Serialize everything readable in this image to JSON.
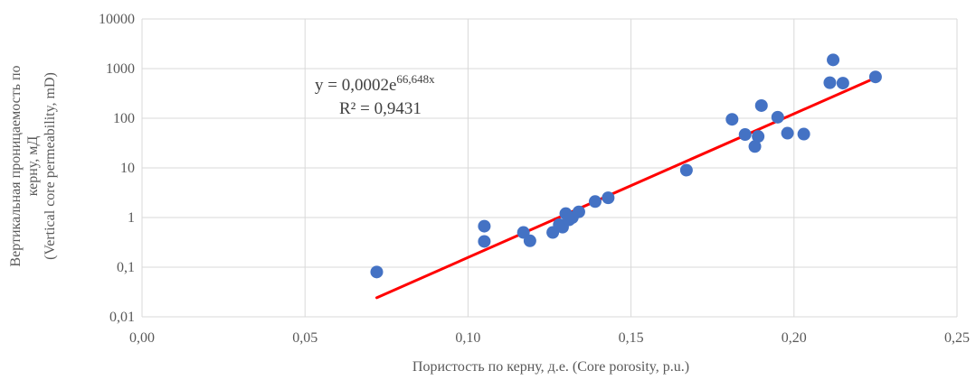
{
  "chart_data": {
    "type": "scatter",
    "xlabel": "Пористость по керну, д.е. (Core porosity, p.u.)",
    "ylabel_lines": [
      "Вертикальная проницаемость по",
      "керну, мД",
      "(Vertical core permeability, mD)"
    ],
    "xlim": [
      0,
      0.25
    ],
    "ylim": [
      0.01,
      10000
    ],
    "yscale": "log",
    "grid": true,
    "x_ticks": [
      0,
      0.05,
      0.1,
      0.15,
      0.2,
      0.25
    ],
    "x_tick_labels": [
      "0,00",
      "0,05",
      "0,10",
      "0,15",
      "0,20",
      "0,25"
    ],
    "y_ticks": [
      0.01,
      0.1,
      1,
      10,
      100,
      1000,
      10000
    ],
    "y_tick_labels": [
      "0,01",
      "0,1",
      "1",
      "10",
      "100",
      "1000",
      "10000"
    ],
    "marker_color": "#4472c4",
    "trendline_color": "#ff0000",
    "points": [
      {
        "x": 0.072,
        "y": 0.08
      },
      {
        "x": 0.105,
        "y": 0.33
      },
      {
        "x": 0.105,
        "y": 0.67
      },
      {
        "x": 0.117,
        "y": 0.5
      },
      {
        "x": 0.119,
        "y": 0.34
      },
      {
        "x": 0.126,
        "y": 0.5
      },
      {
        "x": 0.128,
        "y": 0.72
      },
      {
        "x": 0.129,
        "y": 0.64
      },
      {
        "x": 0.13,
        "y": 1.2
      },
      {
        "x": 0.131,
        "y": 0.9
      },
      {
        "x": 0.132,
        "y": 1.0
      },
      {
        "x": 0.134,
        "y": 1.3
      },
      {
        "x": 0.139,
        "y": 2.1
      },
      {
        "x": 0.143,
        "y": 2.5
      },
      {
        "x": 0.167,
        "y": 9.0
      },
      {
        "x": 0.181,
        "y": 95
      },
      {
        "x": 0.185,
        "y": 47
      },
      {
        "x": 0.188,
        "y": 27
      },
      {
        "x": 0.189,
        "y": 43
      },
      {
        "x": 0.19,
        "y": 180
      },
      {
        "x": 0.195,
        "y": 105
      },
      {
        "x": 0.198,
        "y": 50
      },
      {
        "x": 0.203,
        "y": 48
      },
      {
        "x": 0.211,
        "y": 520
      },
      {
        "x": 0.212,
        "y": 1500
      },
      {
        "x": 0.215,
        "y": 510
      },
      {
        "x": 0.225,
        "y": 680
      }
    ],
    "trendline": {
      "type": "exponential",
      "coefficient": 0.0002,
      "exponent": 66.648,
      "x_range": [
        0.072,
        0.225
      ],
      "equation_prefix": "y = 0,0002e",
      "equation_exponent": "66,648x",
      "r2_label": "R² = 0,9431"
    }
  }
}
